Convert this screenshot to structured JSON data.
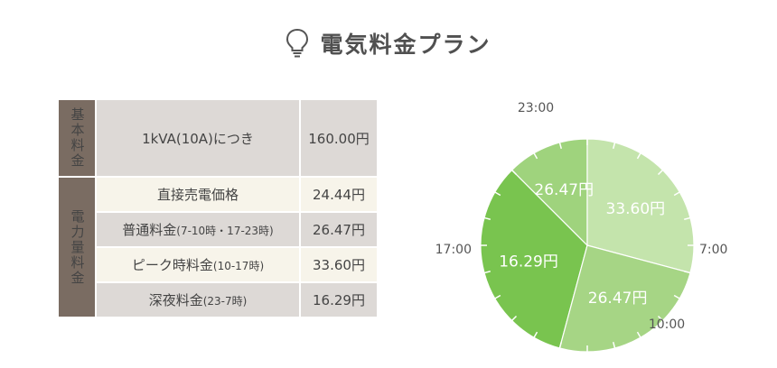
{
  "header": {
    "title": "電気料金プラン",
    "icon": "lightbulb-icon"
  },
  "table": {
    "basic": {
      "category": "基本料金",
      "label": "1kVA(10A)につき",
      "value": "160.00円"
    },
    "energy": {
      "category": "電力量料金",
      "rows": [
        {
          "label": "直接売電価格",
          "note": "",
          "value": "24.44円"
        },
        {
          "label": "普通料金",
          "note": "(7-10時・17-23時)",
          "value": "26.47円"
        },
        {
          "label": "ピーク時料金",
          "note": "(10-17時)",
          "value": "33.60円"
        },
        {
          "label": "深夜料金",
          "note": "(23-7時)",
          "value": "16.29円"
        }
      ]
    }
  },
  "clock": {
    "time_labels": {
      "t2300": "23:00",
      "t0700": "7:00",
      "t1000": "10:00",
      "t1700": "17:00"
    },
    "segments": [
      {
        "label": "16.29円",
        "start_hour": 23,
        "end_hour": 31,
        "color": "#79c44f"
      },
      {
        "label": "26.47円",
        "start_hour": 7,
        "end_hour": 10,
        "color": "#9fd37d"
      },
      {
        "label": "33.60円",
        "start_hour": 10,
        "end_hour": 17,
        "color": "#c4e4ac"
      },
      {
        "label": "26.47円",
        "start_hour": 17,
        "end_hour": 23,
        "color": "#a6d585"
      }
    ]
  }
}
